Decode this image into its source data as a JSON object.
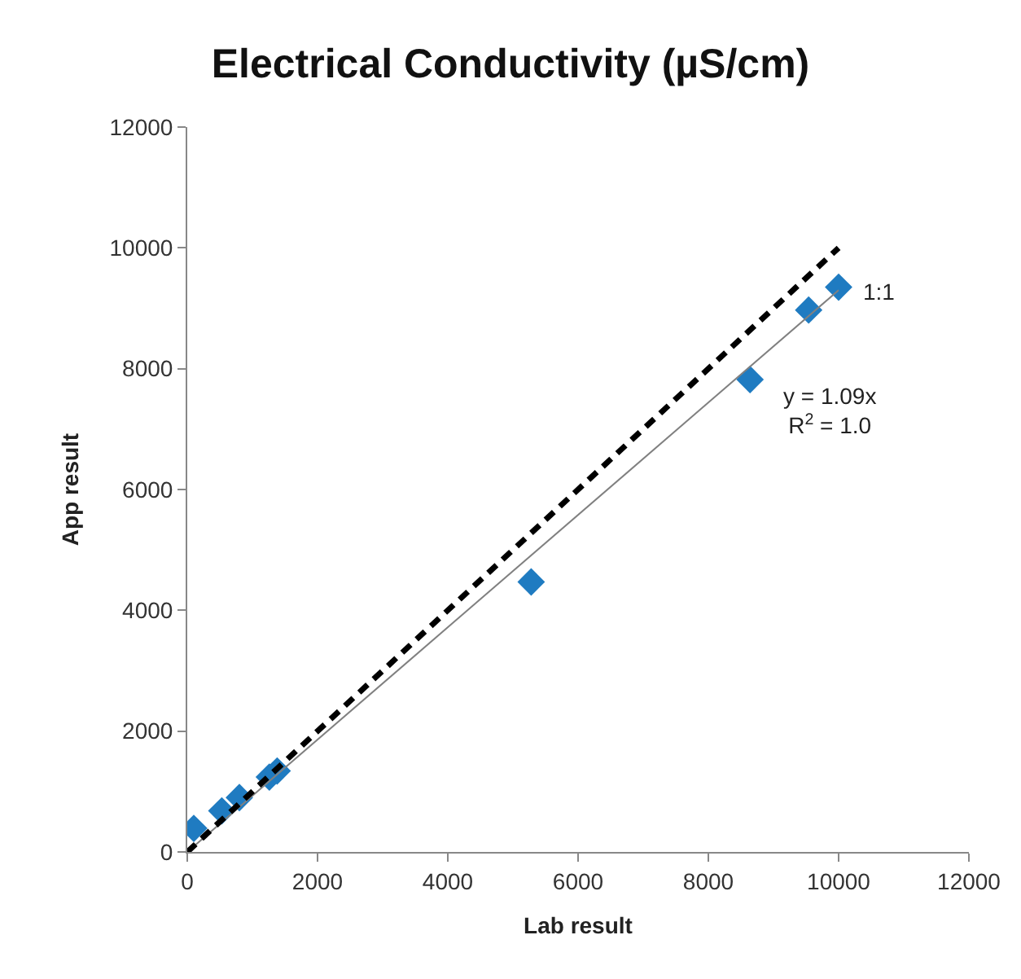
{
  "chart_data": {
    "type": "scatter",
    "title": "Electrical Conductivity (µS/cm)",
    "xlabel": "Lab result",
    "ylabel": "App result",
    "xlim": [
      0,
      12000
    ],
    "xticks": [
      0,
      2000,
      4000,
      6000,
      8000,
      10000,
      12000
    ],
    "ylim": [
      0,
      12000
    ],
    "yticks": [
      0,
      2000,
      4000,
      6000,
      8000,
      10000,
      12000
    ],
    "series": [
      {
        "marker": "diamond",
        "color": "#1f7bc1",
        "x": [
          100,
          530,
          800,
          1260,
          1380,
          5280,
          8640,
          9540,
          10000
        ],
        "values": [
          390,
          680,
          900,
          1240,
          1340,
          4470,
          7820,
          8970,
          9350
        ]
      },
      {
        "type": "line",
        "color": "#808080",
        "line_style": "solid",
        "x": [
          0,
          10000
        ],
        "values": [
          0,
          9300
        ]
      },
      {
        "type": "line",
        "color": "#000000",
        "line_style": "dashed",
        "x": [
          0,
          10000
        ],
        "values": [
          0,
          10000
        ]
      }
    ],
    "annotations": [
      "1:1",
      "y = 1.09x\nR$^{2}$ = 1.0"
    ]
  }
}
